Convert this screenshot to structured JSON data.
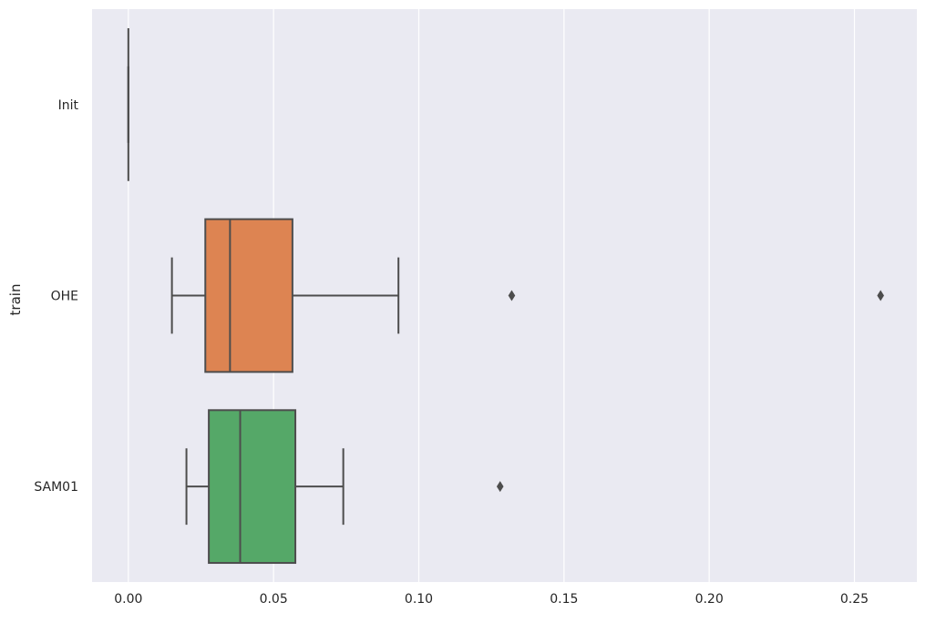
{
  "chart_data": {
    "type": "box",
    "orientation": "horizontal",
    "title": "",
    "xlabel": "",
    "ylabel": "train",
    "xlim": [
      -0.0125,
      0.2715
    ],
    "xticks": [
      0.0,
      0.05,
      0.1,
      0.15,
      0.2,
      0.25
    ],
    "xtick_labels": [
      "0.00",
      "0.05",
      "0.10",
      "0.15",
      "0.20",
      "0.25"
    ],
    "grid": true,
    "categories": [
      "Init",
      "OHE",
      "SAM01"
    ],
    "boxes": [
      {
        "category": "Init",
        "whislo": 0.0,
        "q1": 0.0,
        "median": 0.0,
        "q3": 0.0,
        "whishi": 0.0,
        "fliers": [],
        "color": "#4c72b0"
      },
      {
        "category": "OHE",
        "whislo": 0.015,
        "q1": 0.0265,
        "median": 0.035,
        "q3": 0.0565,
        "whishi": 0.093,
        "fliers": [
          0.132,
          0.259
        ],
        "color": "#dd8452"
      },
      {
        "category": "SAM01",
        "whislo": 0.02,
        "q1": 0.0277,
        "median": 0.0385,
        "q3": 0.0575,
        "whishi": 0.074,
        "fliers": [
          0.128
        ],
        "color": "#55a868"
      }
    ],
    "colors": {
      "background": "#eaeaf2",
      "grid": "#ffffff",
      "lines": "#4d4d4d"
    }
  }
}
